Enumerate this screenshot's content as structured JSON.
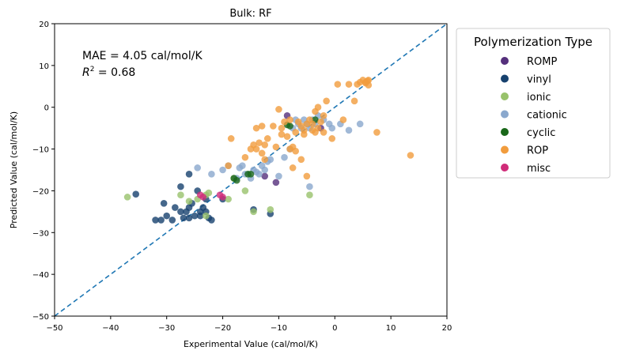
{
  "chart_data": {
    "type": "scatter",
    "title": "Bulk: RF",
    "xlabel": "Experimental Value (cal/mol/K)",
    "ylabel": "Predicted Value (cal/mol/K)",
    "xlim": [
      -50,
      20
    ],
    "ylim": [
      -50,
      20
    ],
    "xticks": [
      -50,
      -40,
      -30,
      -20,
      -10,
      0,
      10,
      20
    ],
    "yticks": [
      -50,
      -40,
      -30,
      -20,
      -10,
      0,
      10,
      20
    ],
    "grid": false,
    "annotation": {
      "mae_text": "MAE = 4.05 cal/mol/K",
      "r2_prefix": "R",
      "r2_exp": "2",
      "r2_suffix": " = 0.68"
    },
    "parity_line": {
      "x": [
        -50,
        20
      ],
      "y": [
        -50,
        20
      ],
      "style": "dashed",
      "color": "#1f77b4"
    },
    "legend": {
      "title": "Polymerization Type",
      "placement": "outside-right"
    },
    "series": [
      {
        "name": "ROMP",
        "color": "#55307c",
        "points": [
          [
            -8.5,
            -2
          ],
          [
            -12.5,
            -16.5
          ],
          [
            -10.5,
            -18
          ],
          [
            -2.5,
            -5
          ]
        ]
      },
      {
        "name": "vinyl",
        "color": "#17416e",
        "points": [
          [
            -35.5,
            -20.8
          ],
          [
            -32,
            -27
          ],
          [
            -31,
            -27
          ],
          [
            -30.5,
            -23
          ],
          [
            -30,
            -26
          ],
          [
            -29,
            -27
          ],
          [
            -28.5,
            -24
          ],
          [
            -27.5,
            -25
          ],
          [
            -27.5,
            -19
          ],
          [
            -27,
            -26.5
          ],
          [
            -26.5,
            -25
          ],
          [
            -26,
            -24
          ],
          [
            -26,
            -26.5
          ],
          [
            -25.5,
            -23
          ],
          [
            -25,
            -26
          ],
          [
            -24.5,
            -20
          ],
          [
            -24,
            -25
          ],
          [
            -24,
            -26
          ],
          [
            -23.5,
            -24
          ],
          [
            -23,
            -22
          ],
          [
            -23,
            -25
          ],
          [
            -22.5,
            -26.5
          ],
          [
            -22,
            -27
          ],
          [
            -26,
            -16
          ],
          [
            -20,
            -22
          ],
          [
            -14.5,
            -24.5
          ],
          [
            -11.5,
            -25.5
          ]
        ]
      },
      {
        "name": "ionic",
        "color": "#98c26b",
        "points": [
          [
            -37,
            -21.5
          ],
          [
            -27.5,
            -21
          ],
          [
            -26,
            -22.5
          ],
          [
            -24.5,
            -22
          ],
          [
            -23,
            -26
          ],
          [
            -23,
            -21
          ],
          [
            -22.5,
            -20.5
          ],
          [
            -19,
            -22
          ],
          [
            -18,
            -17
          ],
          [
            -16,
            -20
          ],
          [
            -14.5,
            -25
          ],
          [
            -11.5,
            -24.5
          ],
          [
            -4.5,
            -21
          ]
        ]
      },
      {
        "name": "cationic",
        "color": "#8aa8cd",
        "points": [
          [
            -24.5,
            -14.5
          ],
          [
            -22,
            -16
          ],
          [
            -20,
            -15
          ],
          [
            -19,
            -14
          ],
          [
            -17.5,
            -17
          ],
          [
            -17,
            -14.5
          ],
          [
            -16.5,
            -14
          ],
          [
            -16,
            -16
          ],
          [
            -15,
            -17
          ],
          [
            -14.5,
            -15
          ],
          [
            -14,
            -15.5
          ],
          [
            -13.5,
            -16
          ],
          [
            -13,
            -14
          ],
          [
            -12.5,
            -15
          ],
          [
            -12,
            -13
          ],
          [
            -11.5,
            -12.5
          ],
          [
            -10,
            -16.5
          ],
          [
            -9,
            -12
          ],
          [
            -8,
            -10
          ],
          [
            -7.5,
            -5
          ],
          [
            -7,
            -3
          ],
          [
            -6.5,
            -4
          ],
          [
            -6,
            -5
          ],
          [
            -5.5,
            -3
          ],
          [
            -5,
            -4
          ],
          [
            -4.5,
            -5
          ],
          [
            -4.5,
            -19
          ],
          [
            -4,
            -3
          ],
          [
            -3.5,
            -4
          ],
          [
            -3,
            -2
          ],
          [
            -2,
            -3
          ],
          [
            -1,
            -4
          ],
          [
            -0.5,
            -5
          ],
          [
            1,
            -4
          ],
          [
            2.5,
            -5.5
          ],
          [
            4.5,
            -4
          ]
        ]
      },
      {
        "name": "cyclic",
        "color": "#196719",
        "points": [
          [
            -18,
            -17
          ],
          [
            -17.5,
            -17.5
          ],
          [
            -15.5,
            -16
          ],
          [
            -15,
            -16
          ],
          [
            -8.5,
            -4.2
          ],
          [
            -8,
            -4.5
          ],
          [
            -3.5,
            -3
          ]
        ]
      },
      {
        "name": "ROP",
        "color": "#f19c3d",
        "points": [
          [
            -19,
            -14
          ],
          [
            -18.5,
            -7.5
          ],
          [
            -16,
            -12
          ],
          [
            -15,
            -10
          ],
          [
            -14.5,
            -9
          ],
          [
            -14,
            -10
          ],
          [
            -14,
            -5
          ],
          [
            -13.5,
            -8.5
          ],
          [
            -13,
            -4.5
          ],
          [
            -13,
            -11
          ],
          [
            -12.5,
            -12.5
          ],
          [
            -12.5,
            -9
          ],
          [
            -12,
            -7.5
          ],
          [
            -11,
            -4.5
          ],
          [
            -10.5,
            -9.5
          ],
          [
            -10,
            -0.5
          ],
          [
            -9.5,
            -6.5
          ],
          [
            -9.5,
            -5
          ],
          [
            -9,
            -3.5
          ],
          [
            -8.5,
            -7
          ],
          [
            -8,
            -10
          ],
          [
            -8,
            -3
          ],
          [
            -7.5,
            -9.5
          ],
          [
            -7.5,
            -14.5
          ],
          [
            -7,
            -10.5
          ],
          [
            -7,
            -6
          ],
          [
            -6.5,
            -3.5
          ],
          [
            -6,
            -4.5
          ],
          [
            -6,
            -12.5
          ],
          [
            -5.5,
            -5.5
          ],
          [
            -5.5,
            -6.5
          ],
          [
            -5,
            -4
          ],
          [
            -5,
            -16.5
          ],
          [
            -4.5,
            -3
          ],
          [
            -4,
            -4
          ],
          [
            -4,
            -5.5
          ],
          [
            -3.5,
            -6
          ],
          [
            -3.5,
            -1
          ],
          [
            -3,
            0
          ],
          [
            -3,
            -5
          ],
          [
            -2.5,
            -3.5
          ],
          [
            -2,
            -6
          ],
          [
            -2,
            -2
          ],
          [
            -1.5,
            1.5
          ],
          [
            -0.5,
            -7.5
          ],
          [
            0.5,
            5.5
          ],
          [
            1.5,
            -3
          ],
          [
            2.5,
            5.5
          ],
          [
            3.5,
            1.5
          ],
          [
            4,
            5.5
          ],
          [
            4.5,
            6
          ],
          [
            5,
            6.5
          ],
          [
            5.5,
            5.8
          ],
          [
            5.5,
            6
          ],
          [
            5.8,
            6.3
          ],
          [
            6,
            5.3
          ],
          [
            6,
            6.5
          ],
          [
            7.5,
            -6
          ],
          [
            13.5,
            -11.5
          ]
        ]
      },
      {
        "name": "misc",
        "color": "#d02c79",
        "points": [
          [
            -24,
            -21
          ],
          [
            -23.5,
            -21.5
          ],
          [
            -20.5,
            -21
          ],
          [
            -20,
            -21.5
          ]
        ]
      }
    ]
  }
}
